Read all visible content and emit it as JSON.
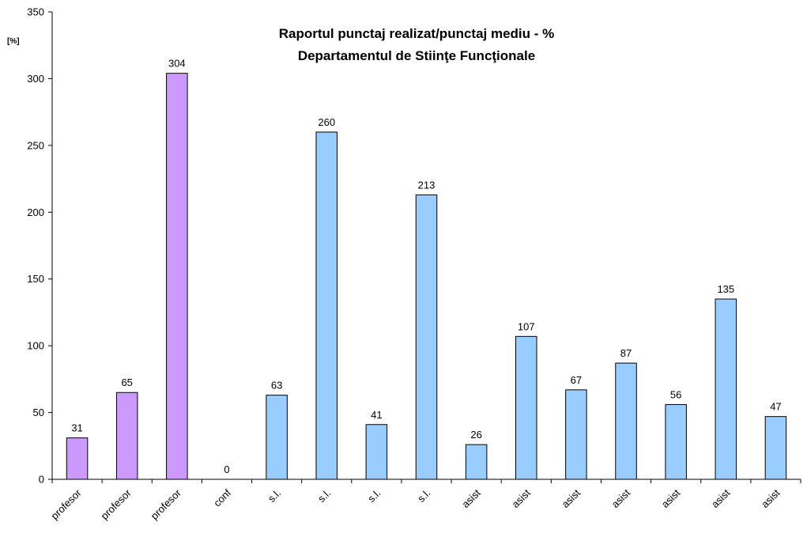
{
  "chart_data": {
    "type": "bar",
    "title": [
      "Raportul punctaj realizat/punctaj mediu - %",
      "Departamentul de Stiinţe Funcţionale"
    ],
    "ylabel": "[%]",
    "xlabel": "",
    "ylim": [
      0,
      350
    ],
    "yticks": [
      0,
      50,
      100,
      150,
      200,
      250,
      300,
      350
    ],
    "grid": false,
    "legend": "none",
    "categories": [
      "profesor",
      "profesor",
      "profesor",
      "conf",
      "s.l.",
      "s.l.",
      "s.l.",
      "s.l.",
      "asist",
      "asist",
      "asist",
      "asist",
      "asist",
      "asist",
      "asist"
    ],
    "values": [
      31,
      65,
      304,
      0,
      63,
      260,
      41,
      213,
      26,
      107,
      67,
      87,
      56,
      135,
      47
    ],
    "data_labels": [
      "31",
      "65",
      "304",
      "0",
      "63",
      "260",
      "41",
      "213",
      "26",
      "107",
      "67",
      "87",
      "56",
      "135",
      "47"
    ],
    "bar_colors": [
      "#cc99ff",
      "#cc99ff",
      "#cc99ff",
      "#99ccff",
      "#99ccff",
      "#99ccff",
      "#99ccff",
      "#99ccff",
      "#99ccff",
      "#99ccff",
      "#99ccff",
      "#99ccff",
      "#99ccff",
      "#99ccff",
      "#99ccff"
    ]
  }
}
